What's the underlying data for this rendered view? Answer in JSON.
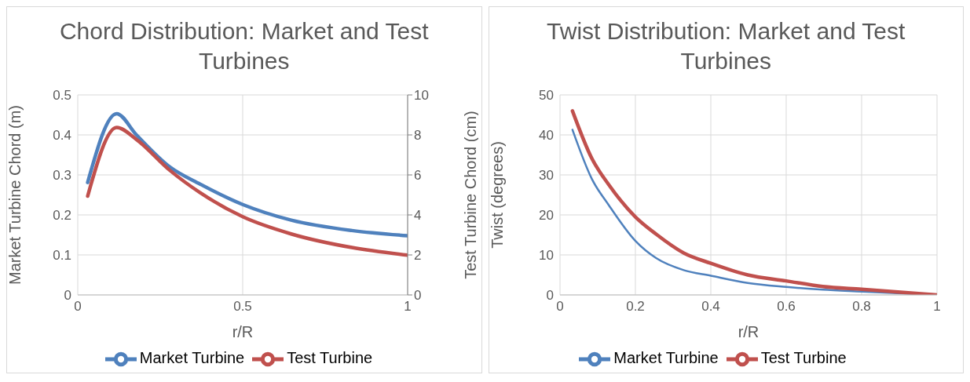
{
  "chart_data": [
    {
      "type": "line",
      "title": "Chord Distribution: Market and Test Turbines",
      "xlabel": "r/R",
      "ylabel": "Market Turbine Chord (m)",
      "y2label": "Test Turbine Chord (cm)",
      "xlim": [
        0,
        1
      ],
      "xticks": [
        0,
        0.5,
        1
      ],
      "ylim": [
        0,
        0.5
      ],
      "yticks": [
        0,
        0.1,
        0.2,
        0.3,
        0.4,
        0.5
      ],
      "y2lim": [
        0,
        10
      ],
      "y2ticks": [
        0,
        2,
        4,
        6,
        8,
        10
      ],
      "grid": true,
      "legend": "bottom",
      "series": [
        {
          "name": "Market Turbine",
          "color": "#4f81bd",
          "x": [
            0.03,
            0.118,
            0.178,
            0.279,
            0.371,
            0.5,
            0.647,
            0.831,
            1
          ],
          "values": [
            0.281,
            0.453,
            0.4,
            0.32,
            0.277,
            0.226,
            0.187,
            0.161,
            0.148
          ]
        },
        {
          "name": "Test Turbine",
          "color": "#c0504d",
          "axis": "y2",
          "x": [
            0.03,
            0.118,
            0.178,
            0.279,
            0.371,
            0.5,
            0.647,
            0.831,
            1
          ],
          "values": [
            4.94,
            8.37,
            7.77,
            6.23,
            5.11,
            3.91,
            3.05,
            2.37,
            1.99
          ]
        }
      ]
    },
    {
      "type": "line",
      "title": "Twist Distribution: Market and Test Turbines",
      "xlabel": "r/R",
      "ylabel": "Twist (degrees)",
      "xlim": [
        0,
        1
      ],
      "xticks": [
        0,
        0.2,
        0.4,
        0.6,
        0.8,
        1
      ],
      "ylim": [
        0,
        50
      ],
      "yticks": [
        0,
        10,
        20,
        30,
        40,
        50
      ],
      "grid": true,
      "legend": "bottom",
      "series": [
        {
          "name": "Market Turbine",
          "color": "#4f81bd",
          "x": [
            0.033,
            0.085,
            0.129,
            0.2,
            0.255,
            0.328,
            0.4,
            0.498,
            0.6,
            0.697,
            0.8,
            1
          ],
          "values": [
            41.3,
            28.9,
            22.5,
            13.5,
            9.2,
            6.2,
            4.8,
            3.0,
            2.0,
            1.3,
            0.85,
            0
          ]
        },
        {
          "name": "Test Turbine",
          "color": "#c0504d",
          "x": [
            0.033,
            0.085,
            0.129,
            0.2,
            0.255,
            0.328,
            0.4,
            0.498,
            0.6,
            0.697,
            0.8,
            1
          ],
          "values": [
            46,
            34,
            27.6,
            19.5,
            15.2,
            10.5,
            7.9,
            5.0,
            3.5,
            2.1,
            1.4,
            0
          ]
        }
      ]
    }
  ]
}
